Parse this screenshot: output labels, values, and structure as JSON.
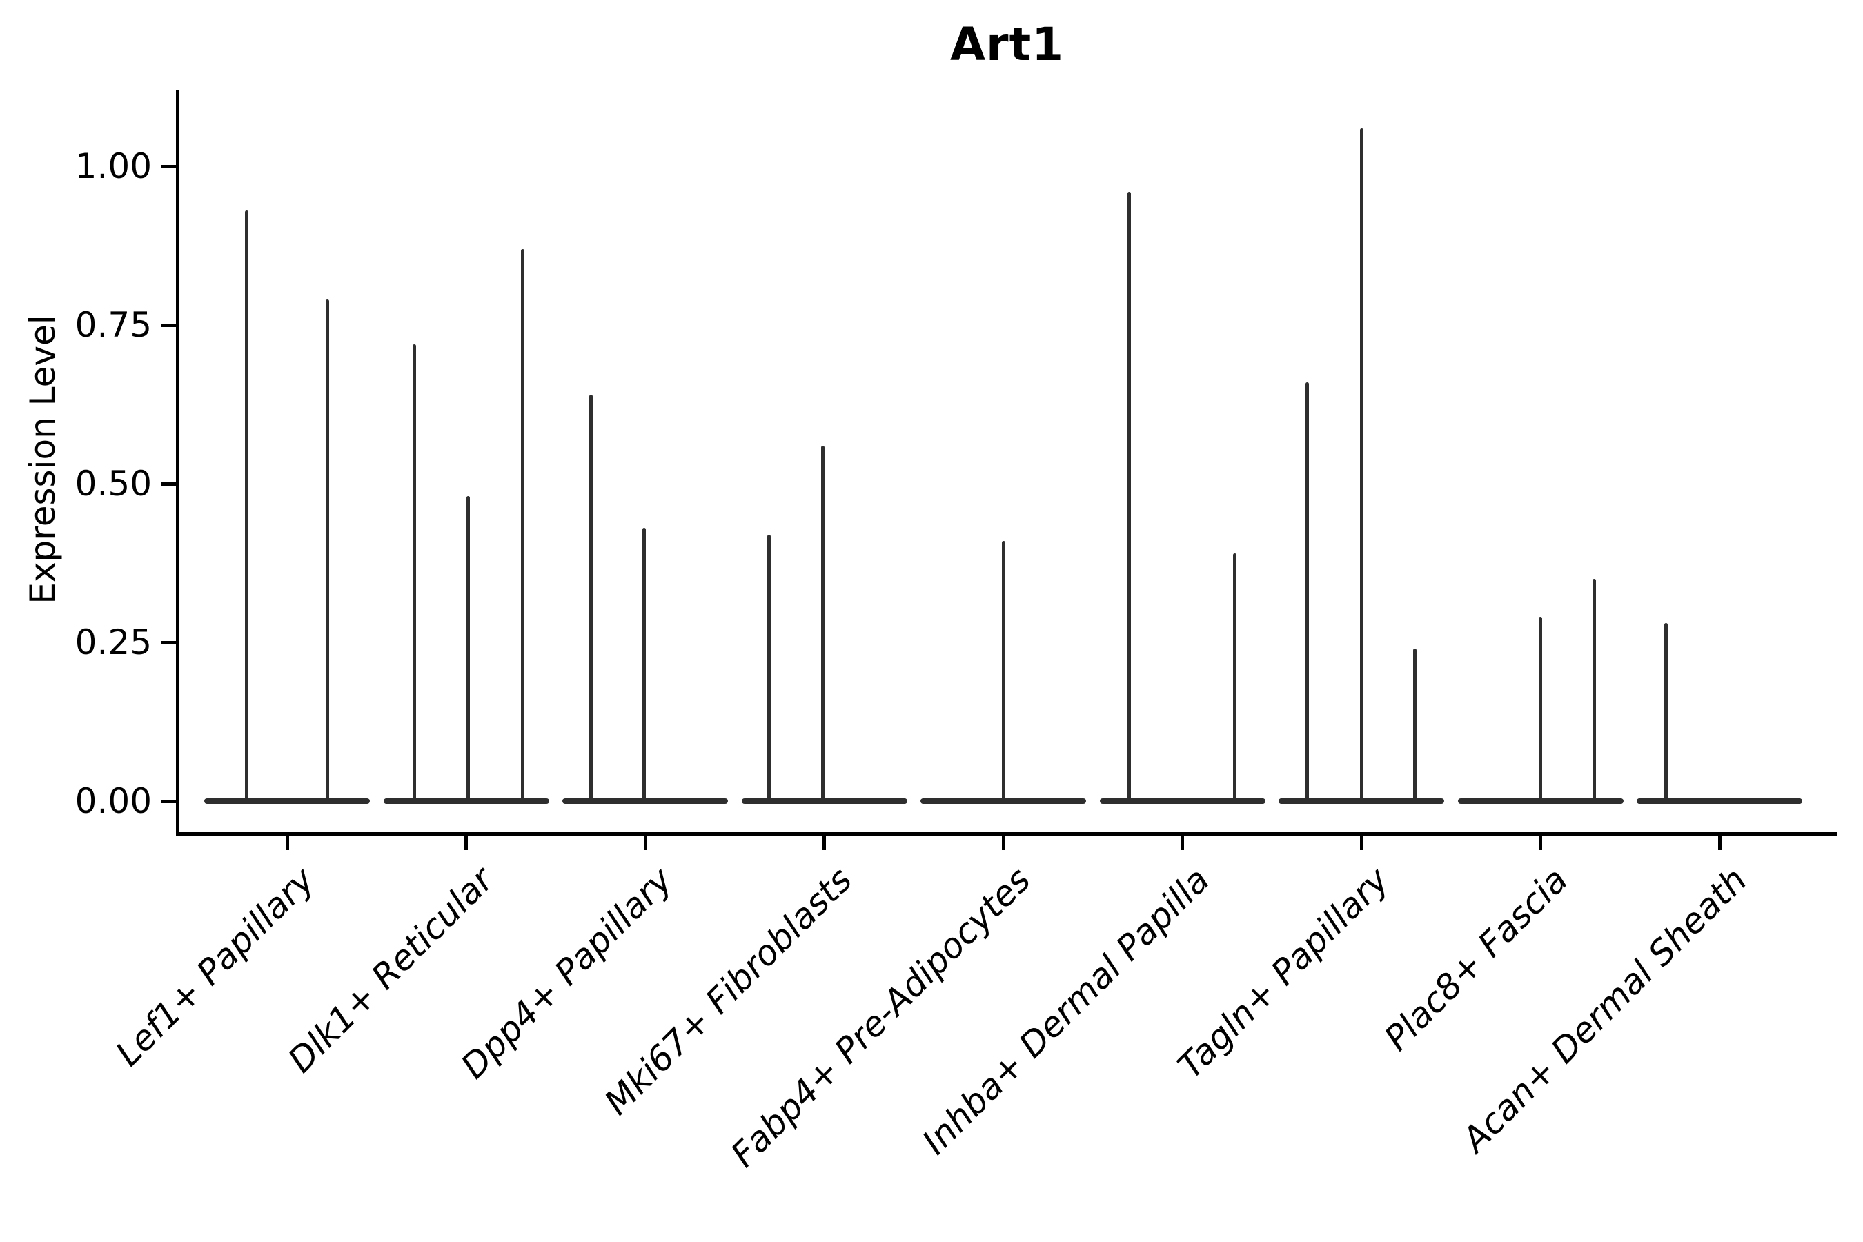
{
  "title": "Art1",
  "chart_data": {
    "type": "violin",
    "title": "Art1",
    "xlabel": "",
    "ylabel": "Expression Level",
    "ylim": [
      -0.052,
      1.115
    ],
    "yticks": [
      0.0,
      0.25,
      0.5,
      0.75,
      1.0
    ],
    "ytick_labels": [
      "0.00",
      "0.25",
      "0.50",
      "0.75",
      "1.00"
    ],
    "grid": false,
    "legend_position": "none",
    "style_note": "violins are near-zero-width: wide flat base at 0 with thin vertical spikes up to each group max; spike dx = pixel offset of dodged sub-violin from category center (category pitch 259.5px, base width 240px)",
    "categories": [
      "Lef1+ Papillary",
      "Dlk1+ Reticular",
      "Dpp4+ Papillary",
      "Mki67+ Fibroblasts",
      "Fabp4+ Pre-Adipocytes",
      "Inhba+ Dermal Papilla",
      "Tagln+ Papillary",
      "Plac8+ Fascia",
      "Acan+ Dermal Sheath"
    ],
    "violins": [
      {
        "category": "Lef1+ Papillary",
        "spikes": [
          {
            "dx": -59,
            "max": 0.93
          },
          {
            "dx": 58,
            "max": 0.79
          }
        ]
      },
      {
        "category": "Dlk1+ Reticular",
        "spikes": [
          {
            "dx": -75,
            "max": 0.72
          },
          {
            "dx": 3,
            "max": 0.48
          },
          {
            "dx": 82,
            "max": 0.87
          }
        ]
      },
      {
        "category": "Dpp4+ Papillary",
        "spikes": [
          {
            "dx": -79,
            "max": 0.64
          },
          {
            "dx": -2,
            "max": 0.43
          }
        ]
      },
      {
        "category": "Mki67+ Fibroblasts",
        "spikes": [
          {
            "dx": -80,
            "max": 0.42
          },
          {
            "dx": -2,
            "max": 0.56
          }
        ]
      },
      {
        "category": "Fabp4+ Pre-Adipocytes",
        "spikes": [
          {
            "dx": 0,
            "max": 0.41
          }
        ]
      },
      {
        "category": "Inhba+ Dermal Papilla",
        "spikes": [
          {
            "dx": -77,
            "max": 0.96
          },
          {
            "dx": 76,
            "max": 0.39
          }
        ]
      },
      {
        "category": "Tagln+ Papillary",
        "spikes": [
          {
            "dx": -79,
            "max": 0.66
          },
          {
            "dx": 0,
            "max": 1.06
          },
          {
            "dx": 77,
            "max": 0.24
          }
        ]
      },
      {
        "category": "Plac8+ Fascia",
        "spikes": [
          {
            "dx": 0,
            "max": 0.29
          },
          {
            "dx": 78,
            "max": 0.35
          }
        ]
      },
      {
        "category": "Acan+ Dermal Sheath",
        "spikes": [
          {
            "dx": -78,
            "max": 0.28
          }
        ]
      }
    ],
    "colors": {
      "violin": "#2e2e2e",
      "axis": "#000000",
      "text": "#000000",
      "background": "#ffffff"
    }
  }
}
